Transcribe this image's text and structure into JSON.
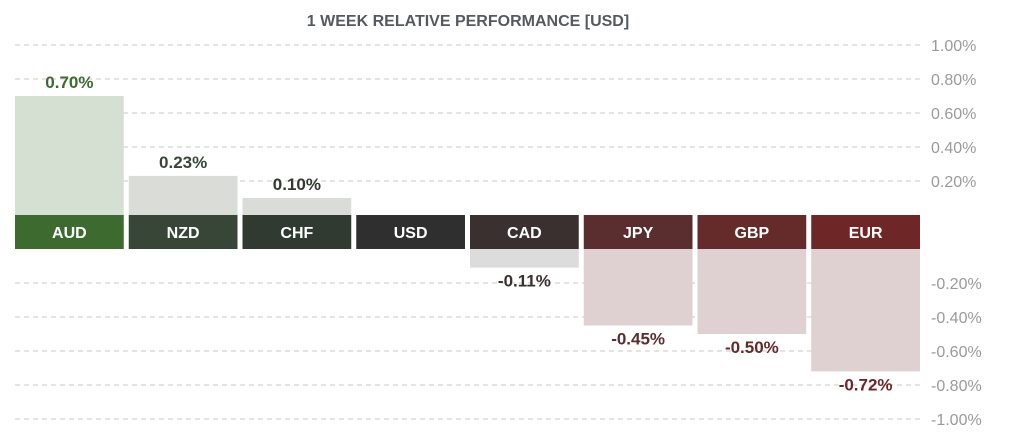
{
  "chart_data": {
    "type": "bar",
    "title": "1 WEEK RELATIVE PERFORMANCE  [USD]",
    "categories": [
      "AUD",
      "NZD",
      "CHF",
      "USD",
      "CAD",
      "JPY",
      "GBP",
      "EUR"
    ],
    "values": [
      0.7,
      0.23,
      0.1,
      0.0,
      -0.11,
      -0.45,
      -0.5,
      -0.72
    ],
    "value_labels": [
      "0.70%",
      "0.23%",
      "0.10%",
      "",
      "-0.11%",
      "-0.45%",
      "-0.50%",
      "-0.72%"
    ],
    "ylim": [
      -1.0,
      1.0
    ],
    "yticks": [
      1.0,
      0.8,
      0.6,
      0.4,
      0.2,
      -0.2,
      -0.4,
      -0.6,
      -0.8,
      -1.0
    ],
    "ytick_labels": [
      "1.00%",
      "0.80%",
      "0.60%",
      "0.40%",
      "0.20%",
      "-0.20%",
      "-0.40%",
      "-0.60%",
      "-0.80%",
      "-1.00%"
    ],
    "grid": true,
    "xlabel": "",
    "ylabel": "",
    "colors": {
      "label_bg": [
        "#3d6b2f",
        "#374637",
        "#313a31",
        "#2f2f2f",
        "#3a3030",
        "#5a2e2e",
        "#652a2a",
        "#6e2626"
      ],
      "bar_fill": [
        "#d5e0d3",
        "#dadcd8",
        "#dadcd8",
        "#dadcd8",
        "#dcdcdc",
        "#dfd0d1",
        "#dfd0d1",
        "#dfd0d1"
      ],
      "value_text": [
        "#3d6b2f",
        "#374637",
        "#313a31",
        "#2f2f2f",
        "#3a3030",
        "#5a2e2e",
        "#652a2a",
        "#6e2626"
      ]
    }
  }
}
